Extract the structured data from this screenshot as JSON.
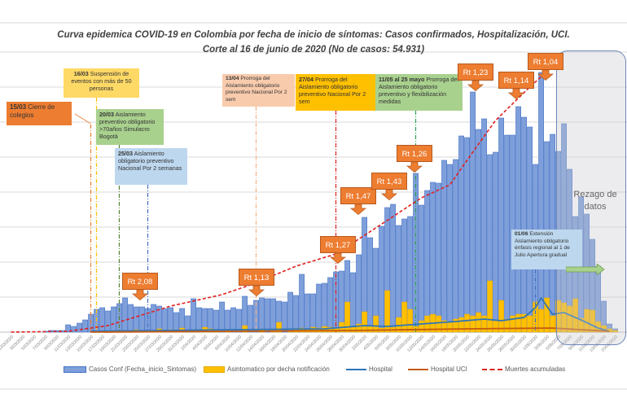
{
  "chart_data": {
    "type": "bar",
    "title": "Curva epidemica COVID-19 en Colombia  por fecha de inicio de síntomas: Casos confirmados, Hospitalización, UCI.",
    "subtitle": "Corte  al 16 de junio de 2020 (No de casos: 54.931)",
    "xlabel": "",
    "ylabel": "",
    "ylim": [
      0,
      350
    ],
    "grid": true,
    "legend_position": "bottom",
    "categories": [
      "1/03/2020",
      "2/03/2020",
      "3/03/2020",
      "4/03/2020",
      "5/03/2020",
      "6/03/2020",
      "7/03/2020",
      "8/03/2020",
      "9/03/2020",
      "10/03/2020",
      "11/03/2020",
      "12/03/2020",
      "13/03/2020",
      "14/03/2020",
      "15/03/2020",
      "16/03/2020",
      "17/03/2020",
      "18/03/2020",
      "19/03/2020",
      "20/03/2020",
      "21/03/2020",
      "22/03/2020",
      "23/03/2020",
      "24/03/2020",
      "25/03/2020",
      "26/03/2020",
      "27/03/2020",
      "28/03/2020",
      "29/03/2020",
      "30/03/2020",
      "31/03/2020",
      "1/04/2020",
      "2/04/2020",
      "3/04/2020",
      "4/04/2020",
      "5/04/2020",
      "6/04/2020",
      "7/04/2020",
      "8/04/2020",
      "9/04/2020",
      "10/04/2020",
      "11/04/2020",
      "12/04/2020",
      "13/04/2020",
      "14/04/2020",
      "15/04/2020",
      "16/04/2020",
      "17/04/2020",
      "18/04/2020",
      "19/04/2020",
      "20/04/2020",
      "21/04/2020",
      "22/04/2020",
      "23/04/2020",
      "24/04/2020",
      "25/04/2020",
      "26/04/2020",
      "27/04/2020",
      "28/04/2020",
      "29/04/2020",
      "30/04/2020",
      "1/05/2020",
      "2/05/2020",
      "3/05/2020",
      "4/05/2020",
      "5/05/2020",
      "6/05/2020",
      "7/05/2020",
      "8/05/2020",
      "9/05/2020",
      "10/05/2020",
      "11/05/2020",
      "12/05/2020",
      "13/05/2020",
      "14/05/2020",
      "15/05/2020",
      "16/05/2020",
      "17/05/2020",
      "18/05/2020",
      "19/05/2020",
      "20/05/2020",
      "21/05/2020",
      "22/05/2020",
      "23/05/2020",
      "24/05/2020",
      "25/05/2020",
      "26/05/2020",
      "27/05/2020",
      "28/05/2020",
      "29/05/2020",
      "30/05/2020",
      "31/05/2020",
      "1/06/2020",
      "2/06/2020",
      "3/06/2020",
      "4/06/2020",
      "5/06/2020",
      "6/06/2020",
      "7/06/2020",
      "8/06/2020",
      "9/06/2020",
      "10/06/2020",
      "11/06/2020",
      "12/06/2020",
      "13/06/2020",
      "14/06/2020",
      "15/06/2020"
    ],
    "series": [
      {
        "name": "Casos Conf (Fecha_inicio_Sintomas)",
        "type": "bar",
        "color": "#7f9fdb",
        "values": [
          0,
          0,
          0,
          0,
          0,
          0,
          1,
          2,
          2,
          2,
          9,
          7,
          11,
          15,
          22,
          28,
          30,
          26,
          31,
          35,
          42,
          34,
          31,
          31,
          29,
          34,
          32,
          29,
          30,
          24,
          29,
          20,
          41,
          30,
          29,
          29,
          27,
          37,
          27,
          30,
          28,
          44,
          33,
          39,
          42,
          41,
          41,
          38,
          37,
          49,
          45,
          71,
          47,
          47,
          59,
          60,
          67,
          74,
          75,
          88,
          73,
          95,
          141,
          116,
          103,
          130,
          153,
          157,
          131,
          139,
          142,
          195,
          156,
          174,
          184,
          183,
          211,
          206,
          212,
          241,
          239,
          295,
          249,
          262,
          218,
          221,
          263,
          242,
          242,
          277,
          264,
          252,
          206,
          319,
          234,
          243,
          222,
          256,
          200,
          142,
          166,
          145,
          114,
          81,
          38,
          10,
          4
        ]
      },
      {
        "name": "Asintomatico  por decha notificación",
        "type": "bar",
        "color": "#ffc000",
        "values": [
          0,
          0,
          0,
          0,
          0,
          0,
          0,
          0,
          0,
          0,
          0,
          0,
          0,
          0,
          0,
          0,
          0,
          0,
          0,
          0,
          2,
          0,
          3,
          1,
          2,
          0,
          4,
          0,
          3,
          2,
          5,
          0,
          2,
          3,
          6,
          4,
          3,
          0,
          2,
          0,
          0,
          8,
          0,
          0,
          3,
          0,
          2,
          12,
          0,
          2,
          3,
          5,
          4,
          6,
          5,
          7,
          6,
          5,
          12,
          37,
          6,
          10,
          25,
          8,
          20,
          5,
          51,
          6,
          18,
          37,
          28,
          7,
          14,
          20,
          22,
          20,
          14,
          12,
          16,
          18,
          22,
          20,
          24,
          20,
          63,
          14,
          39,
          16,
          20,
          22,
          22,
          20,
          37,
          28,
          42,
          20,
          39,
          36,
          32,
          41,
          17,
          28,
          27,
          13,
          8,
          4,
          2
        ]
      },
      {
        "name": "Hospital",
        "type": "line",
        "color": "#2e75b6",
        "points": [
          [
            "15/03/2020",
            1
          ],
          [
            "10/04/2020",
            3
          ],
          [
            "25/04/2020",
            4
          ],
          [
            "2/05/2020",
            8
          ],
          [
            "6/05/2020",
            7
          ],
          [
            "12/05/2020",
            10
          ],
          [
            "18/05/2020",
            13
          ],
          [
            "23/05/2020",
            16
          ],
          [
            "26/05/2020",
            14
          ],
          [
            "30/05/2020",
            18
          ],
          [
            "1/06/2020",
            30
          ],
          [
            "2/06/2020",
            42
          ],
          [
            "4/06/2020",
            22
          ],
          [
            "6/06/2020",
            24
          ],
          [
            "9/06/2020",
            15
          ],
          [
            "12/06/2020",
            5
          ],
          [
            "14/06/2020",
            1
          ]
        ]
      },
      {
        "name": "Hospital UCI",
        "type": "line",
        "color": "#c55a11",
        "points": [
          [
            "15/03/2020",
            0
          ],
          [
            "10/04/2020",
            1
          ],
          [
            "30/04/2020",
            2
          ],
          [
            "20/05/2020",
            4
          ],
          [
            "4/06/2020",
            5
          ],
          [
            "14/06/2020",
            1
          ]
        ]
      },
      {
        "name": "Muertes acumuladas",
        "type": "line",
        "style": "dashed",
        "color": "#e02020",
        "points": [
          [
            "1/03/2020",
            0
          ],
          [
            "11/03/2020",
            1
          ],
          [
            "18/03/2020",
            8
          ],
          [
            "29/03/2020",
            32
          ],
          [
            "7/04/2020",
            46
          ],
          [
            "12/04/2020",
            58
          ],
          [
            "20/04/2020",
            81
          ],
          [
            "27/04/2020",
            96
          ],
          [
            "4/05/2020",
            128
          ],
          [
            "12/05/2020",
            165
          ],
          [
            "17/05/2020",
            181
          ],
          [
            "21/05/2020",
            221
          ],
          [
            "25/05/2020",
            260
          ],
          [
            "31/05/2020",
            301
          ],
          [
            "3/06/2020",
            320
          ]
        ]
      }
    ],
    "rt_labels": [
      {
        "label": "Rt 2,08",
        "date": "24/03/2020"
      },
      {
        "label": "Rt 1,13",
        "date": "13/04/2020"
      },
      {
        "label": "Rt 1,27",
        "date": "27/04/2020"
      },
      {
        "label": "Rt 1,47",
        "date": "30/04/2020"
      },
      {
        "label": "Rt 1,43",
        "date": "5/05/2020"
      },
      {
        "label": "Rt 1,26",
        "date": "9/05/2020"
      },
      {
        "label": "Rt 1,23",
        "date": "19/05/2020"
      },
      {
        "label": "Rt 1,14",
        "date": "26/05/2020"
      },
      {
        "label": "Rt 1,04",
        "date": "31/05/2020"
      }
    ],
    "events": [
      {
        "date_label": "15/03",
        "text": "Cierre de colegios",
        "color": "#ed7d31"
      },
      {
        "date_label": "16/03",
        "text": "Suspensión de eventos con más de 50 personas",
        "color": "#ffd966"
      },
      {
        "date_label": "20/03",
        "text": "Aislamiento preventivo obligatorio  >70años Simulacro Bogotá",
        "color": "#a9d18e"
      },
      {
        "date_label": "25/03",
        "text": "Aislamiento obligatorio preventivo Nacional Por 2 semanas",
        "color": "#bdd7ee"
      },
      {
        "date_label": "13/04",
        "text": "Prorroga del Aislamiento obligatorio preventivo  Nacional  Por 2 sem",
        "color": "#f8cbad"
      },
      {
        "date_label": "27/04",
        "text": "Prorroga del Aislamiento obligatorio preventivo  Nacional  Por 2 sem",
        "color": "#ffc000"
      },
      {
        "date_label": "11/05 al 25 mayo",
        "text": "Prorroga del Aislamiento obligatorio preventivo y flexibilización medidas",
        "color": "#a9d18e"
      },
      {
        "date_label": "01/06",
        "text": "Extensión Aislamiento obligatorio énfasis regional al 1 de Julio Apertura gradual",
        "color": "#bdd7ee"
      }
    ],
    "lag_region": {
      "label": "Rezago de datos",
      "from": "5/06/2020",
      "to": "15/06/2020"
    }
  }
}
